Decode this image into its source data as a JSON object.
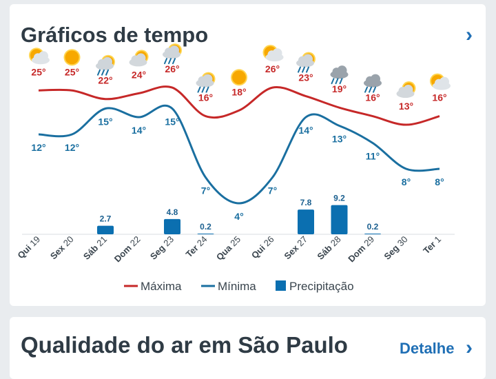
{
  "weather_card": {
    "title": "Gráficos de tempo",
    "chevron": "chevron-right-icon"
  },
  "air_card": {
    "title": "Qualidade do ar em São Paulo",
    "detail_label": "Detalhe",
    "chevron": "chevron-right-icon"
  },
  "chart_data": {
    "type": "line",
    "days": [
      "Qui 19",
      "Sex 20",
      "Sáb 21",
      "Dom 22",
      "Seg 23",
      "Ter 24",
      "Qua 25",
      "Qui 26",
      "Sex 27",
      "Sáb 28",
      "Dom 29",
      "Seg 30",
      "Ter 1"
    ],
    "icons": [
      "partly-sunny-icon",
      "sun-icon",
      "rain-showers-icon",
      "partly-cloudy-icon",
      "rain-showers-icon",
      "rain-showers-icon",
      "sun-icon",
      "partly-sunny-icon",
      "rain-showers-icon",
      "rain-icon",
      "rain-icon",
      "partly-cloudy-icon",
      "partly-sunny-icon"
    ],
    "max_labels": [
      "25°",
      "25°",
      "22°",
      "24°",
      "26°",
      "16°",
      "18°",
      "26°",
      "23°",
      "19°",
      "16°",
      "13°",
      "16°"
    ],
    "min_labels": [
      "12°",
      "12°",
      "15°",
      "14°",
      "15°",
      "7°",
      "4°",
      "7°",
      "14°",
      "13°",
      "11°",
      "8°",
      "8°"
    ],
    "series": [
      {
        "name": "Máxima",
        "color": "#c62828",
        "values": [
          25,
          25,
          22,
          24,
          26,
          16,
          18,
          26,
          23,
          19,
          16,
          13,
          16
        ]
      },
      {
        "name": "Mínima",
        "color": "#1a6fa0",
        "values": [
          12,
          12,
          15,
          14,
          15,
          7,
          4,
          7,
          14,
          13,
          11,
          8,
          8
        ]
      }
    ],
    "precipitation": {
      "name": "Precipitação",
      "color": "#0b6fb0",
      "values": [
        0,
        0,
        2.7,
        0,
        4.8,
        0.2,
        0,
        0,
        7.8,
        9.2,
        0.2,
        0,
        0
      ],
      "labels": [
        "",
        "",
        "2.7",
        "",
        "4.8",
        "0.2",
        "",
        "",
        "7.8",
        "9.2",
        "0.2",
        "",
        ""
      ]
    },
    "legend": [
      "Máxima",
      "Mínima",
      "Precipitação"
    ],
    "legend_position": "bottom"
  }
}
